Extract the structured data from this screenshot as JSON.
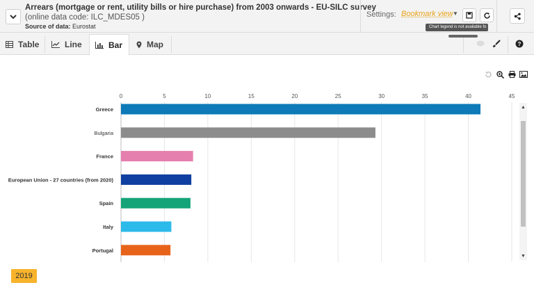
{
  "header": {
    "title": "Arrears (mortgage or rent, utility bills or hire purchase) from 2003 onwards - EU-SILC survey",
    "subtitle": "(online data code: ILC_MDES05 )",
    "source_label": "Source of data:",
    "source_value": "Eurostat",
    "settings_label": "Settings:",
    "bookmark_value": "Bookmark view",
    "tooltip": "Chart legend is not available fo"
  },
  "tabs": [
    {
      "label": "Table",
      "icon": "table-icon"
    },
    {
      "label": "Line",
      "icon": "line-chart-icon"
    },
    {
      "label": "Bar",
      "icon": "bar-chart-icon",
      "active": true
    },
    {
      "label": "Map",
      "icon": "map-marker-icon"
    }
  ],
  "chart_data": {
    "type": "bar",
    "orientation": "horizontal",
    "categories": [
      "Greece",
      "Bulgaria",
      "France",
      "European Union - 27 countries (from 2020)",
      "Spain",
      "Italy",
      "Portugal"
    ],
    "values": [
      41.4,
      29.3,
      8.3,
      8.1,
      8.0,
      5.8,
      5.7
    ],
    "colors": [
      "#0e7ab8",
      "#8c8c8c",
      "#e57fae",
      "#0f3fa0",
      "#15a378",
      "#2cbaea",
      "#e8631a"
    ],
    "xticks": [
      0,
      5,
      10,
      15,
      20,
      25,
      30,
      35,
      40,
      45
    ],
    "xlim": [
      0,
      45
    ],
    "grid": true,
    "axis_position": "top"
  },
  "time_selector": {
    "year": "2019"
  },
  "colors": {
    "accent": "#f7b32b",
    "bookmark": "#e8a317"
  }
}
